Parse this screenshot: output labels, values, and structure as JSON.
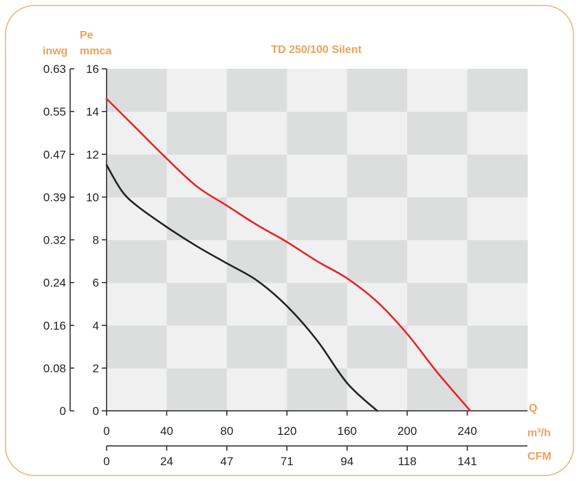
{
  "chart_data": {
    "type": "line",
    "title": "TD 250/100 Silent",
    "ylabel_top": "Pe",
    "ylabel_left_unit": "inwg",
    "ylabel_right_unit": "mmca",
    "xlabel_top": "Q",
    "xlabel_unit": "m³/h",
    "x2label_unit": "CFM",
    "xlim": [
      0,
      280
    ],
    "ylim": [
      0,
      16
    ],
    "grid": true,
    "x_ticks": [
      "0",
      "40",
      "80",
      "120",
      "160",
      "200",
      "240"
    ],
    "x2_ticks": [
      "0",
      "24",
      "47",
      "71",
      "94",
      "118",
      "141"
    ],
    "y_ticks": [
      "0",
      "2",
      "4",
      "6",
      "8",
      "10",
      "12",
      "14",
      "16"
    ],
    "y2_ticks": [
      "0",
      "0.08",
      "0.16",
      "0.24",
      "0.32",
      "0.39",
      "0.47",
      "0.55",
      "0.63"
    ],
    "series": [
      {
        "color": "#e8232a",
        "points": [
          [
            0,
            14.6
          ],
          [
            20,
            13.2
          ],
          [
            40,
            11.8
          ],
          [
            60,
            10.5
          ],
          [
            80,
            9.6
          ],
          [
            100,
            8.7
          ],
          [
            120,
            7.9
          ],
          [
            140,
            7.0
          ],
          [
            160,
            6.2
          ],
          [
            180,
            5.1
          ],
          [
            200,
            3.6
          ],
          [
            220,
            1.8
          ],
          [
            242,
            0
          ]
        ]
      },
      {
        "color": "#222222",
        "points": [
          [
            0,
            11.5
          ],
          [
            10,
            10.3
          ],
          [
            20,
            9.6
          ],
          [
            40,
            8.6
          ],
          [
            60,
            7.7
          ],
          [
            80,
            6.9
          ],
          [
            100,
            6.1
          ],
          [
            120,
            4.9
          ],
          [
            140,
            3.3
          ],
          [
            160,
            1.3
          ],
          [
            180,
            0
          ]
        ]
      }
    ]
  },
  "colors": {
    "accent": "#f0a05a",
    "frame": "#f0b070",
    "grid_light": "#f0f0f0",
    "grid_dark": "#dcdddd"
  }
}
